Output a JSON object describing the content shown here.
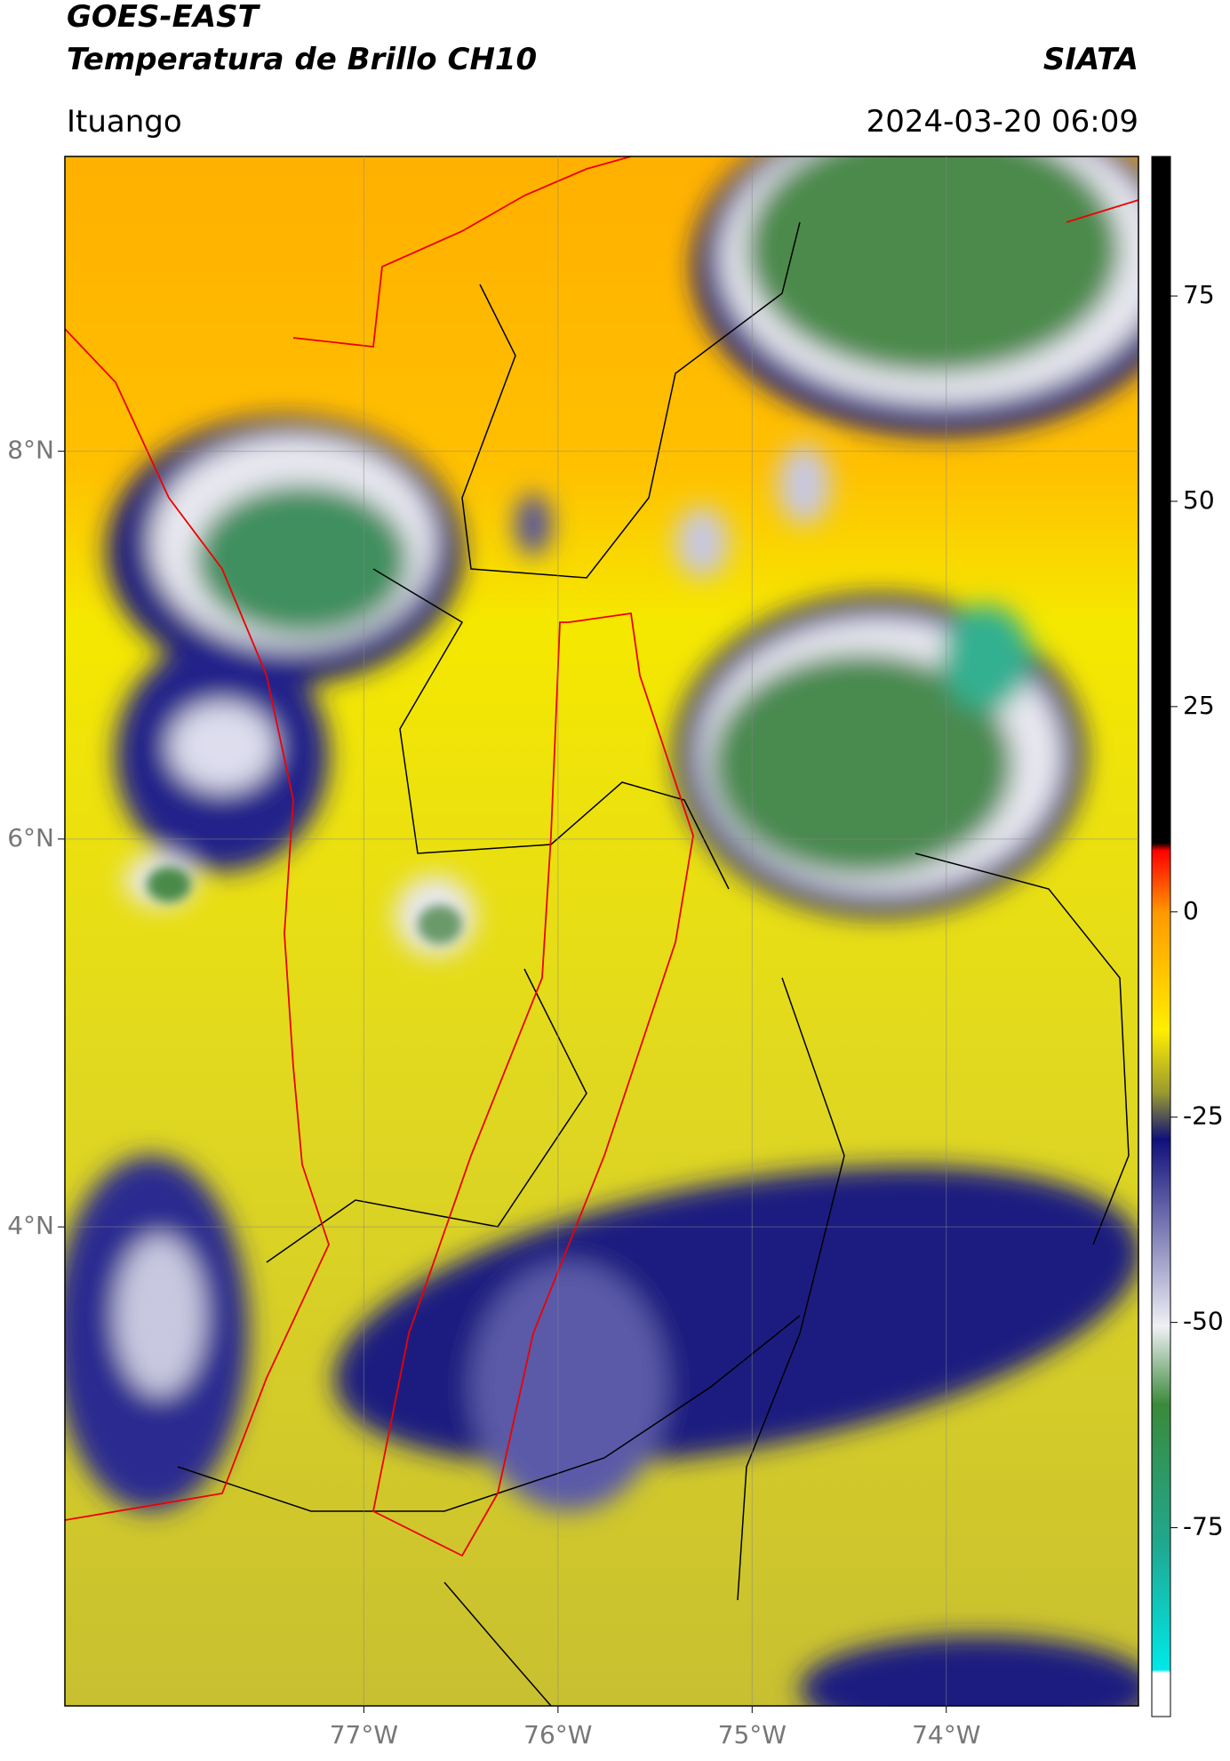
{
  "header": {
    "title": "GOES-EAST",
    "subtitle": "Temperatura de Brillo CH10",
    "agency": "SIATA",
    "location": "Ituango",
    "datetime": "2024-03-20 06:09"
  },
  "map": {
    "xlim": [
      -78.54,
      -73.01
    ],
    "ylim": [
      1.53,
      9.52
    ],
    "xticks": [
      {
        "value": -77,
        "label": "77°W"
      },
      {
        "value": -76,
        "label": "76°W"
      },
      {
        "value": -75,
        "label": "75°W"
      },
      {
        "value": -74,
        "label": "74°W"
      }
    ],
    "yticks": [
      {
        "value": 8,
        "label": "8°N"
      },
      {
        "value": 6,
        "label": "6°N"
      },
      {
        "value": 4,
        "label": "4°N"
      }
    ],
    "grid": true
  },
  "colorbar": {
    "clim": [
      -98,
      92
    ],
    "ticks": [
      75,
      50,
      25,
      0,
      -25,
      -50,
      -75
    ]
  }
}
